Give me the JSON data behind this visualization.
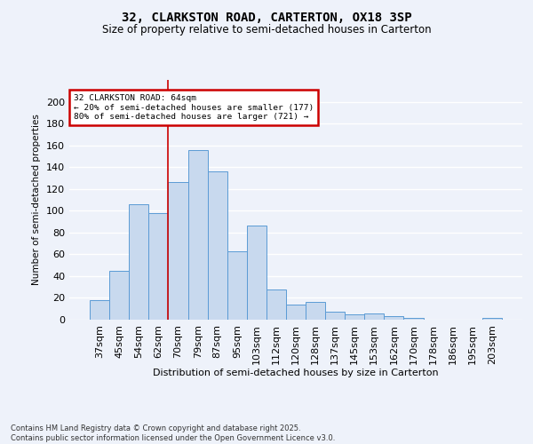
{
  "title1": "32, CLARKSTON ROAD, CARTERTON, OX18 3SP",
  "title2": "Size of property relative to semi-detached houses in Carterton",
  "xlabel": "Distribution of semi-detached houses by size in Carterton",
  "ylabel": "Number of semi-detached properties",
  "categories": [
    "37sqm",
    "45sqm",
    "54sqm",
    "62sqm",
    "70sqm",
    "79sqm",
    "87sqm",
    "95sqm",
    "103sqm",
    "112sqm",
    "120sqm",
    "128sqm",
    "137sqm",
    "145sqm",
    "153sqm",
    "162sqm",
    "170sqm",
    "178sqm",
    "186sqm",
    "195sqm",
    "203sqm"
  ],
  "values": [
    18,
    45,
    106,
    98,
    126,
    156,
    136,
    63,
    86,
    28,
    14,
    16,
    7,
    5,
    6,
    3,
    2,
    0,
    0,
    0,
    2
  ],
  "bar_color": "#c8d9ee",
  "bar_edge_color": "#5b9bd5",
  "vline_x": 3.5,
  "vline_color": "#cc0000",
  "annotation_title": "32 CLARKSTON ROAD: 64sqm",
  "annotation_line1": "← 20% of semi-detached houses are smaller (177)",
  "annotation_line2": "80% of semi-detached houses are larger (721) →",
  "annotation_box_color": "#cc0000",
  "footer1": "Contains HM Land Registry data © Crown copyright and database right 2025.",
  "footer2": "Contains public sector information licensed under the Open Government Licence v3.0.",
  "ylim": [
    0,
    220
  ],
  "background_color": "#eef2fa"
}
